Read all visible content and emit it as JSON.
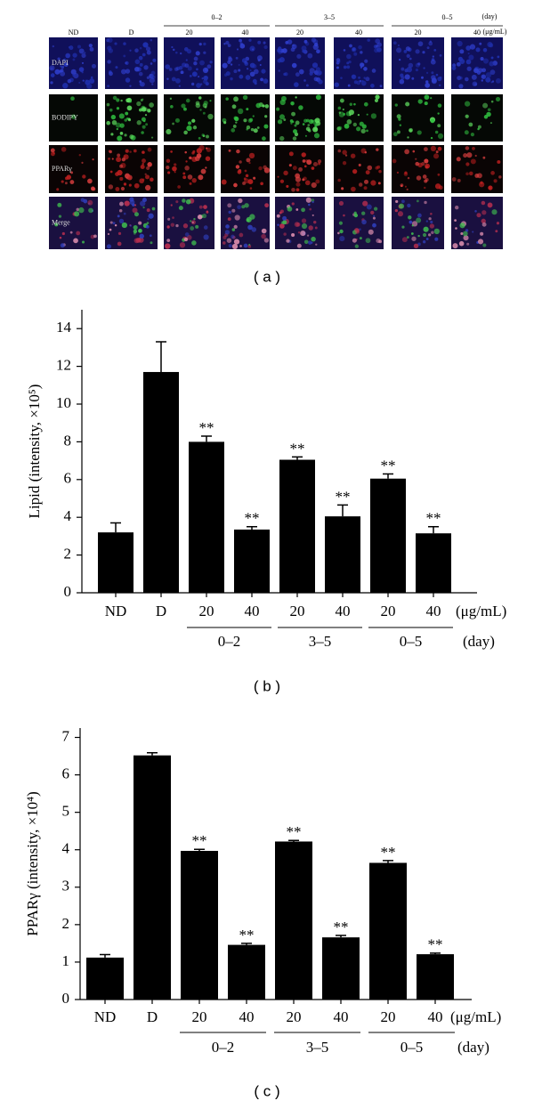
{
  "panel_a": {
    "columns": [
      "ND",
      "D"
    ],
    "groups": [
      {
        "label": "0–2",
        "doses": [
          "20",
          "40"
        ]
      },
      {
        "label": "3–5",
        "doses": [
          "20",
          "40"
        ]
      },
      {
        "label": "0–5",
        "doses": [
          "20",
          "40"
        ]
      }
    ],
    "day_unit": "(day)",
    "dose_unit": "(μg/mL)",
    "rows": [
      "DAPI",
      "BODIPY",
      "PPARγ",
      "Merge"
    ],
    "caption": "( a )"
  },
  "chart_data": [
    {
      "type": "bar",
      "caption": "( b )",
      "y_label": "Lipid (intensity, ×10⁵)",
      "categories": [
        "ND",
        "D",
        "20",
        "40",
        "20",
        "40",
        "20",
        "40"
      ],
      "values": [
        3.2,
        11.7,
        8.0,
        3.35,
        7.05,
        4.05,
        6.05,
        3.15
      ],
      "errors": [
        0.5,
        1.6,
        0.3,
        0.15,
        0.15,
        0.6,
        0.25,
        0.35
      ],
      "significance": [
        null,
        null,
        "**",
        "**",
        "**",
        "**",
        "**",
        "**"
      ],
      "groups": [
        "0–2",
        "3–5",
        "0–5"
      ],
      "dose_unit": "(μg/mL)",
      "day_unit": "(day)",
      "color": "#000000",
      "ylim": [
        0,
        15
      ],
      "yticks": [
        0,
        2,
        4,
        6,
        8,
        10,
        12,
        14
      ]
    },
    {
      "type": "bar",
      "caption": "( c )",
      "y_label": "PPARγ (intensity, ×10⁴)",
      "categories": [
        "ND",
        "D",
        "20",
        "40",
        "20",
        "40",
        "20",
        "40"
      ],
      "values": [
        1.12,
        6.52,
        3.97,
        1.46,
        4.22,
        1.66,
        3.65,
        1.21
      ],
      "errors": [
        0.08,
        0.07,
        0.04,
        0.04,
        0.03,
        0.05,
        0.06,
        0.03
      ],
      "significance": [
        null,
        null,
        "**",
        "**",
        "**",
        "**",
        "**",
        "**"
      ],
      "groups": [
        "0–2",
        "3–5",
        "0–5"
      ],
      "dose_unit": "(μg/mL)",
      "day_unit": "(day)",
      "color": "#000000",
      "ylim": [
        0,
        7.25
      ],
      "yticks": [
        0,
        1,
        2,
        3,
        4,
        5,
        6,
        7
      ]
    }
  ]
}
